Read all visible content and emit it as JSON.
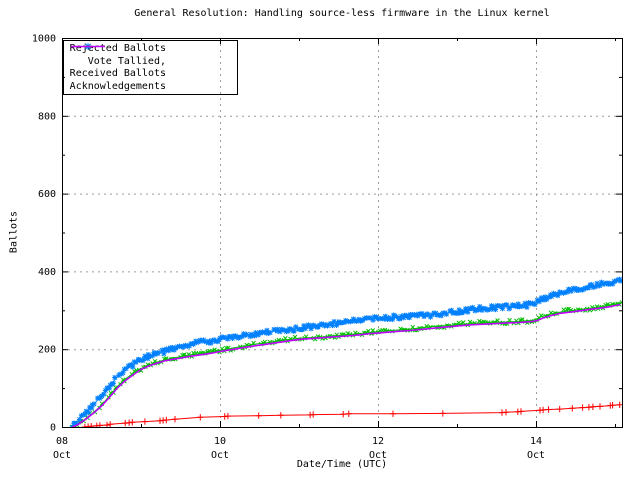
{
  "title": "General Resolution: Handling source-less firmware in the Linux kernel",
  "axes": {
    "ylabel": "Ballots",
    "xlabel": "Date/Time (UTC)",
    "ylim": [
      0,
      1000
    ],
    "y_major_ticks": [
      0,
      200,
      400,
      600,
      800,
      1000
    ],
    "y_minor_ticks": [
      100,
      300,
      500,
      700,
      900
    ],
    "xlim_days": [
      0,
      7.09
    ],
    "x_major_ticks": [
      {
        "day": 0,
        "line1": "08",
        "line2": "Oct"
      },
      {
        "day": 2,
        "line1": "10",
        "line2": "Oct"
      },
      {
        "day": 4,
        "line1": "12",
        "line2": "Oct"
      },
      {
        "day": 6,
        "line1": "14",
        "line2": "Oct"
      }
    ],
    "x_minor_tick_days": [
      1,
      3,
      5,
      7
    ],
    "grid": "dashed gray at major ticks both axes"
  },
  "colors": {
    "background": "#ffffff",
    "axis": "#000000",
    "grid": "#9c9c9c",
    "rejected": "#ff0000",
    "tallied": "#00c000",
    "received": "#0080ff",
    "acknowledgements": "#c000ff"
  },
  "legend_position": "top-left",
  "chart_data": {
    "type": "line",
    "title": "General Resolution: Handling source-less firmware in the Linux kernel",
    "xlabel": "Date/Time (UTC)",
    "ylabel": "Ballots",
    "x_unit": "days since 08 Oct 00:00 UTC",
    "ylim": [
      0,
      1000
    ],
    "xlim": [
      0,
      7.09
    ],
    "legend_position": "top-left",
    "grid": true,
    "series": [
      {
        "name": "Rejected Ballots",
        "color": "#ff0000",
        "marker": "plus",
        "style": "linespoints",
        "points": [
          [
            0.29,
            0
          ],
          [
            0.33,
            1
          ],
          [
            0.37,
            2
          ],
          [
            0.44,
            3
          ],
          [
            0.48,
            4
          ],
          [
            0.57,
            5
          ],
          [
            0.61,
            7
          ],
          [
            0.8,
            10
          ],
          [
            0.85,
            11
          ],
          [
            0.89,
            12
          ],
          [
            1.05,
            14
          ],
          [
            1.24,
            16
          ],
          [
            1.28,
            17
          ],
          [
            1.32,
            18
          ],
          [
            1.43,
            20
          ],
          [
            1.75,
            25
          ],
          [
            2.06,
            27
          ],
          [
            2.1,
            28
          ],
          [
            2.49,
            29
          ],
          [
            2.77,
            30
          ],
          [
            3.14,
            31
          ],
          [
            3.18,
            32
          ],
          [
            3.56,
            33
          ],
          [
            3.63,
            34
          ],
          [
            4.19,
            34
          ],
          [
            4.82,
            35
          ],
          [
            5.57,
            37
          ],
          [
            5.62,
            38
          ],
          [
            5.77,
            39
          ],
          [
            5.81,
            40
          ],
          [
            6.05,
            43
          ],
          [
            6.09,
            44
          ],
          [
            6.16,
            45
          ],
          [
            6.3,
            46
          ],
          [
            6.46,
            48
          ],
          [
            6.59,
            50
          ],
          [
            6.67,
            51
          ],
          [
            6.72,
            52
          ],
          [
            6.81,
            53
          ],
          [
            6.94,
            55
          ],
          [
            6.97,
            56
          ],
          [
            7.06,
            57
          ]
        ]
      },
      {
        "name": "Vote Tallied,",
        "color": "#00c000",
        "marker": "cross",
        "style": "dense-band",
        "points": [
          [
            0.127,
            0
          ],
          [
            0.17,
            4
          ],
          [
            0.22,
            10
          ],
          [
            0.27,
            17
          ],
          [
            0.32,
            25
          ],
          [
            0.38,
            34
          ],
          [
            0.44,
            45
          ],
          [
            0.5,
            57
          ],
          [
            0.56,
            70
          ],
          [
            0.62,
            84
          ],
          [
            0.68,
            99
          ],
          [
            0.74,
            112
          ],
          [
            0.8,
            123
          ],
          [
            0.86,
            132
          ],
          [
            0.92,
            140
          ],
          [
            0.98,
            148
          ],
          [
            1.05,
            155
          ],
          [
            1.12,
            161
          ],
          [
            1.19,
            166
          ],
          [
            1.26,
            170
          ],
          [
            1.33,
            174
          ],
          [
            1.4,
            177
          ],
          [
            1.48,
            180
          ],
          [
            1.56,
            183
          ],
          [
            1.64,
            186
          ],
          [
            1.72,
            188
          ],
          [
            1.81,
            190
          ],
          [
            1.9,
            193
          ],
          [
            2.0,
            197
          ],
          [
            2.12,
            201
          ],
          [
            2.24,
            206
          ],
          [
            2.36,
            210
          ],
          [
            2.48,
            214
          ],
          [
            2.6,
            217
          ],
          [
            2.76,
            222
          ],
          [
            2.9,
            226
          ],
          [
            3.02,
            228
          ],
          [
            3.16,
            230
          ],
          [
            3.31,
            232
          ],
          [
            3.46,
            235
          ],
          [
            3.61,
            237
          ],
          [
            3.76,
            240
          ],
          [
            3.9,
            243
          ],
          [
            4.03,
            246
          ],
          [
            4.16,
            248
          ],
          [
            4.29,
            250
          ],
          [
            4.42,
            252
          ],
          [
            4.55,
            255
          ],
          [
            4.68,
            258
          ],
          [
            4.81,
            260
          ],
          [
            4.94,
            262
          ],
          [
            5.07,
            264
          ],
          [
            5.2,
            266
          ],
          [
            5.33,
            268
          ],
          [
            5.46,
            269
          ],
          [
            5.59,
            270
          ],
          [
            5.72,
            271
          ],
          [
            5.85,
            272
          ],
          [
            5.95,
            274
          ],
          [
            6.0,
            277
          ],
          [
            6.05,
            282
          ],
          [
            6.12,
            287
          ],
          [
            6.2,
            291
          ],
          [
            6.3,
            295
          ],
          [
            6.4,
            298
          ],
          [
            6.5,
            300
          ],
          [
            6.6,
            303
          ],
          [
            6.7,
            306
          ],
          [
            6.8,
            309
          ],
          [
            6.9,
            312
          ],
          [
            7.0,
            316
          ],
          [
            7.09,
            320
          ]
        ]
      },
      {
        "name": "Received Ballots",
        "color": "#0080ff",
        "marker": "star",
        "style": "dense-band",
        "points": [
          [
            0.127,
            0
          ],
          [
            0.16,
            6
          ],
          [
            0.19,
            12
          ],
          [
            0.22,
            20
          ],
          [
            0.25,
            26
          ],
          [
            0.29,
            33
          ],
          [
            0.33,
            42
          ],
          [
            0.37,
            52
          ],
          [
            0.42,
            62
          ],
          [
            0.46,
            72
          ],
          [
            0.51,
            84
          ],
          [
            0.56,
            96
          ],
          [
            0.61,
            108
          ],
          [
            0.66,
            119
          ],
          [
            0.71,
            130
          ],
          [
            0.76,
            140
          ],
          [
            0.81,
            148
          ],
          [
            0.87,
            156
          ],
          [
            0.93,
            164
          ],
          [
            0.99,
            172
          ],
          [
            1.05,
            178
          ],
          [
            1.11,
            183
          ],
          [
            1.18,
            187
          ],
          [
            1.24,
            191
          ],
          [
            1.31,
            195
          ],
          [
            1.37,
            199
          ],
          [
            1.44,
            204
          ],
          [
            1.5,
            208
          ],
          [
            1.57,
            212
          ],
          [
            1.63,
            214
          ],
          [
            1.72,
            217
          ],
          [
            1.82,
            220
          ],
          [
            1.9,
            221
          ],
          [
            2.0,
            225
          ],
          [
            2.1,
            229
          ],
          [
            2.2,
            232
          ],
          [
            2.31,
            236
          ],
          [
            2.41,
            239
          ],
          [
            2.51,
            242
          ],
          [
            2.62,
            245
          ],
          [
            2.72,
            247
          ],
          [
            2.82,
            250
          ],
          [
            2.92,
            252
          ],
          [
            3.02,
            254
          ],
          [
            3.16,
            258
          ],
          [
            3.31,
            262
          ],
          [
            3.46,
            266
          ],
          [
            3.61,
            270
          ],
          [
            3.76,
            274
          ],
          [
            3.9,
            278
          ],
          [
            4.03,
            280
          ],
          [
            4.16,
            282
          ],
          [
            4.29,
            283
          ],
          [
            4.42,
            284
          ],
          [
            4.55,
            286
          ],
          [
            4.68,
            288
          ],
          [
            4.81,
            291
          ],
          [
            4.94,
            295
          ],
          [
            5.07,
            299
          ],
          [
            5.2,
            303
          ],
          [
            5.33,
            305
          ],
          [
            5.46,
            307
          ],
          [
            5.59,
            309
          ],
          [
            5.72,
            310
          ],
          [
            5.85,
            312
          ],
          [
            5.95,
            316
          ],
          [
            6.0,
            322
          ],
          [
            6.05,
            328
          ],
          [
            6.12,
            332
          ],
          [
            6.2,
            337
          ],
          [
            6.3,
            344
          ],
          [
            6.4,
            349
          ],
          [
            6.5,
            353
          ],
          [
            6.6,
            357
          ],
          [
            6.7,
            361
          ],
          [
            6.8,
            366
          ],
          [
            6.9,
            370
          ],
          [
            7.0,
            374
          ],
          [
            7.09,
            378
          ]
        ]
      },
      {
        "name": "Acknowledgements",
        "color": "#c000ff",
        "marker": "none",
        "style": "line",
        "points": [
          [
            0.13,
            0
          ],
          [
            0.2,
            6
          ],
          [
            0.3,
            20
          ],
          [
            0.4,
            36
          ],
          [
            0.5,
            54
          ],
          [
            0.6,
            76
          ],
          [
            0.7,
            100
          ],
          [
            0.8,
            119
          ],
          [
            0.9,
            134
          ],
          [
            1.0,
            148
          ],
          [
            1.1,
            157
          ],
          [
            1.2,
            164
          ],
          [
            1.3,
            170
          ],
          [
            1.4,
            174
          ],
          [
            1.5,
            177
          ],
          [
            1.6,
            181
          ],
          [
            1.7,
            184
          ],
          [
            1.8,
            187
          ],
          [
            1.9,
            190
          ],
          [
            2.0,
            194
          ],
          [
            2.15,
            199
          ],
          [
            2.3,
            204
          ],
          [
            2.45,
            209
          ],
          [
            2.6,
            213
          ],
          [
            2.76,
            218
          ],
          [
            2.9,
            222
          ],
          [
            3.05,
            226
          ],
          [
            3.2,
            228
          ],
          [
            3.4,
            231
          ],
          [
            3.6,
            234
          ],
          [
            3.77,
            237
          ],
          [
            3.9,
            240
          ],
          [
            4.03,
            242
          ],
          [
            4.2,
            245
          ],
          [
            4.4,
            248
          ],
          [
            4.6,
            252
          ],
          [
            4.8,
            256
          ],
          [
            5.0,
            260
          ],
          [
            5.2,
            263
          ],
          [
            5.4,
            265
          ],
          [
            5.6,
            267
          ],
          [
            5.8,
            269
          ],
          [
            5.95,
            271
          ],
          [
            6.02,
            274
          ],
          [
            6.1,
            281
          ],
          [
            6.2,
            287
          ],
          [
            6.3,
            292
          ],
          [
            6.45,
            296
          ],
          [
            6.6,
            300
          ],
          [
            6.75,
            304
          ],
          [
            6.9,
            308
          ],
          [
            7.0,
            312
          ],
          [
            7.07,
            315
          ]
        ]
      }
    ]
  }
}
